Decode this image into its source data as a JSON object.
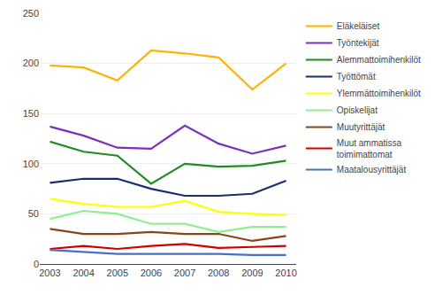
{
  "chart_data": {
    "type": "line",
    "x": [
      2003,
      2004,
      2005,
      2006,
      2007,
      2008,
      2009,
      2010
    ],
    "series": [
      {
        "name": "Eläkeläiset",
        "color": "#FFB300",
        "values": [
          198,
          196,
          183,
          213,
          210,
          206,
          174,
          200
        ]
      },
      {
        "name": "Työntekijät",
        "color": "#7B2FBE",
        "values": [
          137,
          128,
          116,
          115,
          138,
          120,
          110,
          118
        ]
      },
      {
        "name": "Alemmattoimihenkilöt",
        "color": "#228B22",
        "values": [
          122,
          112,
          108,
          80,
          100,
          97,
          98,
          103
        ]
      },
      {
        "name": "Työttömät",
        "color": "#1C2D6E",
        "values": [
          81,
          85,
          85,
          75,
          68,
          68,
          70,
          83
        ]
      },
      {
        "name": "Ylemmättoimihenkilöt",
        "color": "#FFFF00",
        "values": [
          65,
          60,
          57,
          57,
          63,
          52,
          50,
          49
        ]
      },
      {
        "name": "Opiskelijat",
        "color": "#90EE90",
        "values": [
          45,
          53,
          50,
          40,
          40,
          32,
          37,
          37
        ]
      },
      {
        "name": "Muutyrittäjät",
        "color": "#8B4513",
        "values": [
          35,
          30,
          30,
          32,
          30,
          30,
          23,
          28
        ]
      },
      {
        "name": "Muut ammatissa\ntoimimattomat",
        "color": "#CC0000",
        "values": [
          15,
          18,
          15,
          18,
          20,
          16,
          17,
          18
        ]
      },
      {
        "name": "Maatalousyrittäjät",
        "color": "#4472C4",
        "values": [
          14,
          12,
          10,
          10,
          10,
          10,
          9,
          9
        ]
      }
    ],
    "xlim": [
      2002.7,
      2010.3
    ],
    "xticks": [
      2003,
      2004,
      2005,
      2006,
      2007,
      2008,
      2009,
      2010
    ],
    "ylim": [
      0,
      250
    ],
    "yticks": [
      0,
      50,
      100,
      150,
      200,
      250
    ],
    "grid": "y",
    "legend": "right"
  }
}
